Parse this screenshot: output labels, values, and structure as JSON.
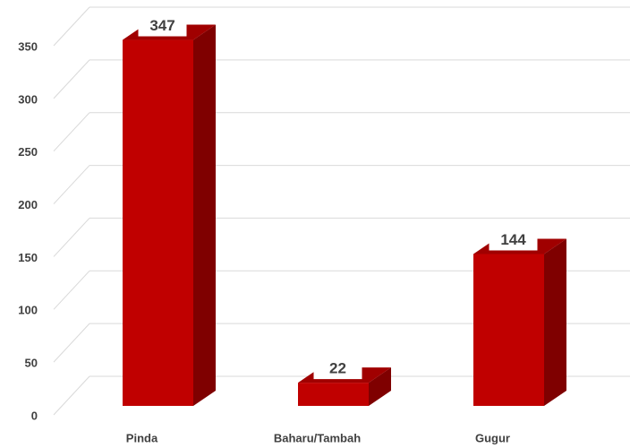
{
  "chart_data": {
    "type": "bar3d",
    "categories": [
      "Pinda",
      "Baharu/Tambah",
      "Gugur"
    ],
    "values": [
      347,
      22,
      144
    ],
    "color": "#c00000",
    "ylim": [
      0,
      350
    ],
    "yticks": [
      0,
      50,
      100,
      150,
      200,
      250,
      300,
      350
    ],
    "grid": true
  }
}
